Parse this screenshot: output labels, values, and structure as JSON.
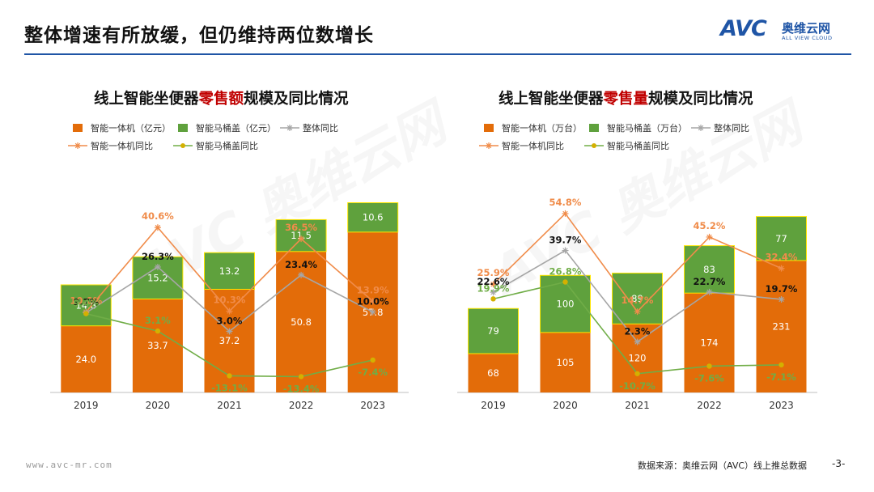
{
  "header": {
    "title": "整体增速有所放缓，但仍维持两位数增长",
    "logo": {
      "mark": "AVC",
      "name_cn": "奥维云网",
      "name_en": "ALL VIEW CLOUD"
    },
    "brand_color": "#1f55a6"
  },
  "colors": {
    "integrated": "#e36c09",
    "cover": "#5fa13d",
    "integrated_yoy": "#f08c4a",
    "cover_yoy": "#70ad47",
    "total_yoy": "#a6a6a6",
    "highlight": "#c00000"
  },
  "chart_data": [
    {
      "type": "bar",
      "stacked": true,
      "title_parts": [
        "线上智能坐便器",
        "零售额",
        "规模及同比情况"
      ],
      "categories": [
        "2019",
        "2020",
        "2021",
        "2022",
        "2023"
      ],
      "series": [
        {
          "name": "智能一体机（亿元）",
          "kind": "bar",
          "values": [
            24.0,
            33.7,
            37.2,
            50.8,
            57.8
          ],
          "labels": [
            "24.0",
            "33.7",
            "37.2",
            "50.8",
            "57.8"
          ]
        },
        {
          "name": "智能马桶盖（亿元）",
          "kind": "bar",
          "values": [
            14.8,
            15.2,
            13.2,
            11.5,
            10.6
          ],
          "labels": [
            "14.8",
            "15.2",
            "13.2",
            "11.5",
            "10.6"
          ]
        },
        {
          "name": "整体同比",
          "kind": "line",
          "values": [
            9.7,
            26.3,
            3.0,
            23.4,
            10.0
          ],
          "labels": [
            "9.7%",
            "26.3%",
            "3.0%",
            "23.4%",
            "10.0%"
          ]
        },
        {
          "name": "智能一体机同比",
          "kind": "line",
          "values": [
            10.0,
            40.6,
            10.3,
            36.5,
            13.9
          ],
          "labels": [
            "10.0%",
            "40.6%",
            "10.3%",
            "36.5%",
            "13.9%"
          ]
        },
        {
          "name": "智能马桶盖同比",
          "kind": "line",
          "values": [
            9.4,
            3.1,
            -13.1,
            -13.4,
            -7.4
          ],
          "labels": [
            "9.4%",
            "3.1%",
            "-13.1%",
            "-13.4%",
            "-7.4%"
          ]
        }
      ],
      "bar_max": 70,
      "yoy_range": [
        -25,
        55
      ],
      "legend": "top"
    },
    {
      "type": "bar",
      "stacked": true,
      "title_parts": [
        "线上智能坐便器",
        "零售量",
        "规模及同比情况"
      ],
      "categories": [
        "2019",
        "2020",
        "2021",
        "2022",
        "2023"
      ],
      "series": [
        {
          "name": "智能一体机（万台）",
          "kind": "bar",
          "values": [
            68,
            105,
            120,
            174,
            231
          ],
          "labels": [
            "68",
            "105",
            "120",
            "174",
            "231"
          ]
        },
        {
          "name": "智能马桶盖（万台）",
          "kind": "bar",
          "values": [
            79,
            100,
            89,
            83,
            77
          ],
          "labels": [
            "79",
            "100",
            "89",
            "83",
            "77"
          ]
        },
        {
          "name": "整体同比",
          "kind": "line",
          "values": [
            22.6,
            39.7,
            2.3,
            22.7,
            19.7
          ],
          "labels": [
            "22.6%",
            "39.7%",
            "2.3%",
            "22.7%",
            "19.7%"
          ]
        },
        {
          "name": "智能一体机同比",
          "kind": "line",
          "values": [
            25.9,
            54.8,
            14.7,
            45.2,
            32.4
          ],
          "labels": [
            "25.9%",
            "54.8%",
            "14.7%",
            "45.2%",
            "32.4%"
          ]
        },
        {
          "name": "智能马桶盖同比",
          "kind": "line",
          "values": [
            19.9,
            26.8,
            -10.7,
            -7.6,
            -7.1
          ],
          "labels": [
            "19.9%",
            "26.8%",
            "-10.7%",
            "-7.6%",
            "-7.1%"
          ]
        }
      ],
      "bar_max": 340,
      "yoy_range": [
        -25,
        70
      ],
      "legend": "top"
    }
  ],
  "footer": {
    "url": "www.avc-mr.com",
    "source": "数据来源：奥维云网（AVC）线上推总数据",
    "page": "-3-"
  }
}
